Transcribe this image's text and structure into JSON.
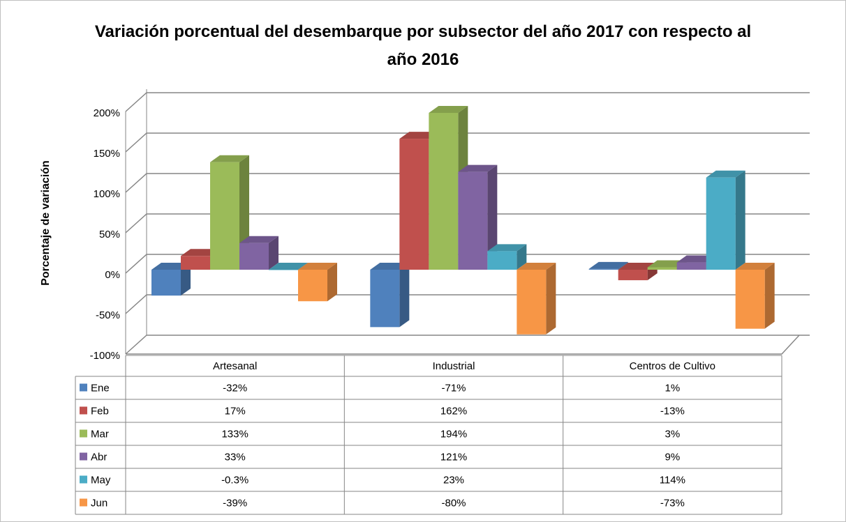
{
  "chart_data": {
    "type": "bar",
    "title": "Variación porcentual del desembarque por subsector del año 2017 con respecto al año 2016",
    "y_label": "Porcentaje de variación",
    "categories": [
      "Artesanal",
      "Industrial",
      "Centros de Cultivo"
    ],
    "series": [
      {
        "name": "Ene",
        "color": "#4f81bd",
        "values": [
          -32,
          -71,
          1
        ],
        "value_labels": [
          "-32%",
          "-71%",
          "1%"
        ]
      },
      {
        "name": "Feb",
        "color": "#c0504d",
        "values": [
          17,
          162,
          -13
        ],
        "value_labels": [
          "17%",
          "162%",
          "-13%"
        ]
      },
      {
        "name": "Mar",
        "color": "#9bbb59",
        "values": [
          133,
          194,
          3
        ],
        "value_labels": [
          "133%",
          "194%",
          "3%"
        ]
      },
      {
        "name": "Abr",
        "color": "#8064a2",
        "values": [
          33,
          121,
          9
        ],
        "value_labels": [
          "33%",
          "121%",
          "9%"
        ]
      },
      {
        "name": "May",
        "color": "#4bacc6",
        "values": [
          -0.3,
          23,
          114
        ],
        "value_labels": [
          "-0.3%",
          "23%",
          "114%"
        ]
      },
      {
        "name": "Jun",
        "color": "#f79646",
        "values": [
          -39,
          -80,
          -73
        ],
        "value_labels": [
          "-39%",
          "-80%",
          "-73%"
        ]
      }
    ],
    "ylim": [
      -100,
      200
    ],
    "yticks": [
      {
        "value": -100,
        "label": "-100%"
      },
      {
        "value": -50,
        "label": "-50%"
      },
      {
        "value": 0,
        "label": "0%"
      },
      {
        "value": 50,
        "label": "50%"
      },
      {
        "value": 100,
        "label": "100%"
      },
      {
        "value": 150,
        "label": "150%"
      },
      {
        "value": 200,
        "label": "200%"
      }
    ],
    "grid": true
  }
}
